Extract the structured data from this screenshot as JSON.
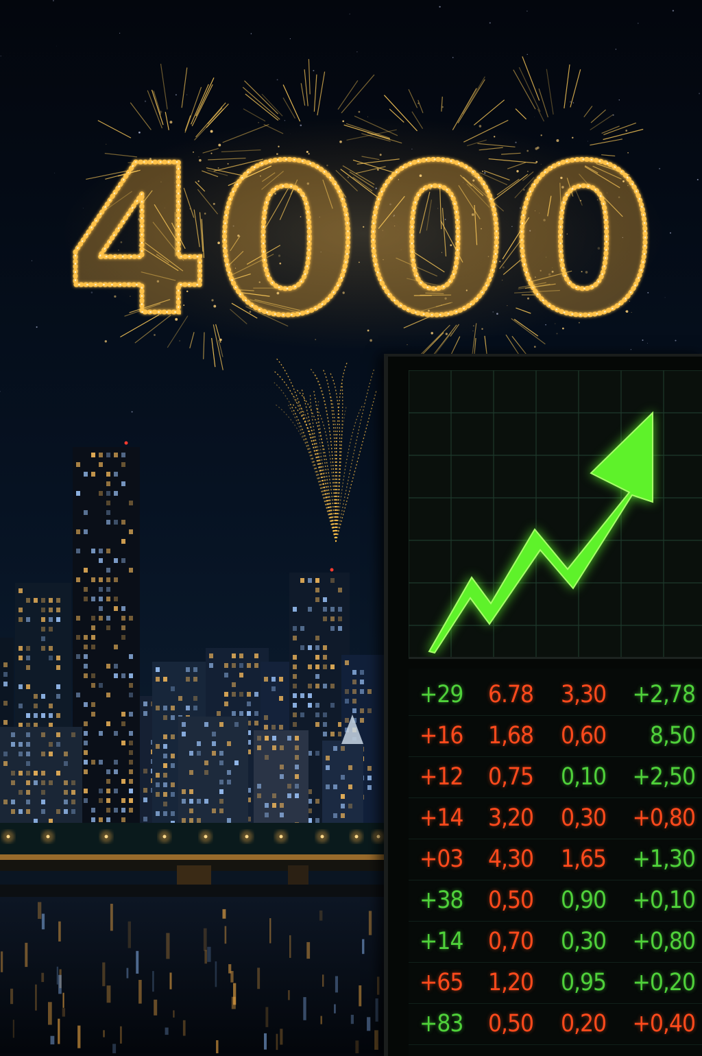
{
  "headline_number": "4000",
  "colors": {
    "sky_top": "#03060d",
    "sky_bottom": "#0a1828",
    "firework_gold": "#ffc24a",
    "chart_arrow_green": "#5ef22a",
    "ticker_up": "#4fd13a",
    "ticker_down": "#ff4a1c"
  },
  "chart_arrow": {
    "direction": "up",
    "icon": "trend-up-arrow-icon"
  },
  "ticker": {
    "rows": [
      {
        "cells": [
          {
            "text": "+29",
            "trend": "up"
          },
          {
            "text": "6.78",
            "trend": "down"
          },
          {
            "text": "3,30",
            "trend": "down"
          },
          {
            "text": "+2,78",
            "trend": "up"
          }
        ]
      },
      {
        "cells": [
          {
            "text": "+16",
            "trend": "down"
          },
          {
            "text": "1,68",
            "trend": "down"
          },
          {
            "text": "0,60",
            "trend": "down"
          },
          {
            "text": "8,50",
            "trend": "up"
          }
        ]
      },
      {
        "cells": [
          {
            "text": "+12",
            "trend": "down"
          },
          {
            "text": "0,75",
            "trend": "down"
          },
          {
            "text": "0,10",
            "trend": "up"
          },
          {
            "text": "+2,50",
            "trend": "up"
          }
        ]
      },
      {
        "cells": [
          {
            "text": "+14",
            "trend": "down"
          },
          {
            "text": "3,20",
            "trend": "down"
          },
          {
            "text": "0,30",
            "trend": "down"
          },
          {
            "text": "+0,80",
            "trend": "down"
          }
        ]
      },
      {
        "cells": [
          {
            "text": "+03",
            "trend": "down"
          },
          {
            "text": "4,30",
            "trend": "down"
          },
          {
            "text": "1,65",
            "trend": "down"
          },
          {
            "text": "+1,30",
            "trend": "up"
          }
        ]
      },
      {
        "cells": [
          {
            "text": "+38",
            "trend": "up"
          },
          {
            "text": "0,50",
            "trend": "down"
          },
          {
            "text": "0,90",
            "trend": "up"
          },
          {
            "text": "+0,10",
            "trend": "up"
          }
        ]
      },
      {
        "cells": [
          {
            "text": "+14",
            "trend": "up"
          },
          {
            "text": "0,70",
            "trend": "down"
          },
          {
            "text": "0,30",
            "trend": "up"
          },
          {
            "text": "+0,80",
            "trend": "up"
          }
        ]
      },
      {
        "cells": [
          {
            "text": "+65",
            "trend": "down"
          },
          {
            "text": "1,20",
            "trend": "down"
          },
          {
            "text": "0,95",
            "trend": "up"
          },
          {
            "text": "+0,20",
            "trend": "up"
          }
        ]
      },
      {
        "cells": [
          {
            "text": "+83",
            "trend": "up"
          },
          {
            "text": "0,50",
            "trend": "down"
          },
          {
            "text": "0,20",
            "trend": "down"
          },
          {
            "text": "+0,40",
            "trend": "down"
          }
        ]
      }
    ]
  }
}
